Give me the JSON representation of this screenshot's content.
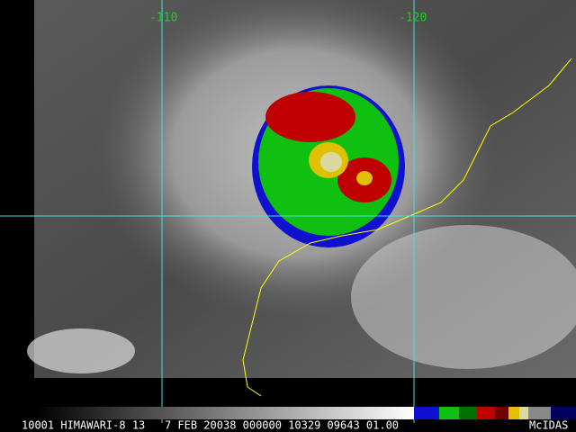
{
  "grid_labels": [
    "-110",
    "-120"
  ],
  "footer": {
    "info": "10001 HIMAWARI-8 13   7 FEB 20038 000000 10329 09643 01.00",
    "logo": "McIDAS"
  }
}
